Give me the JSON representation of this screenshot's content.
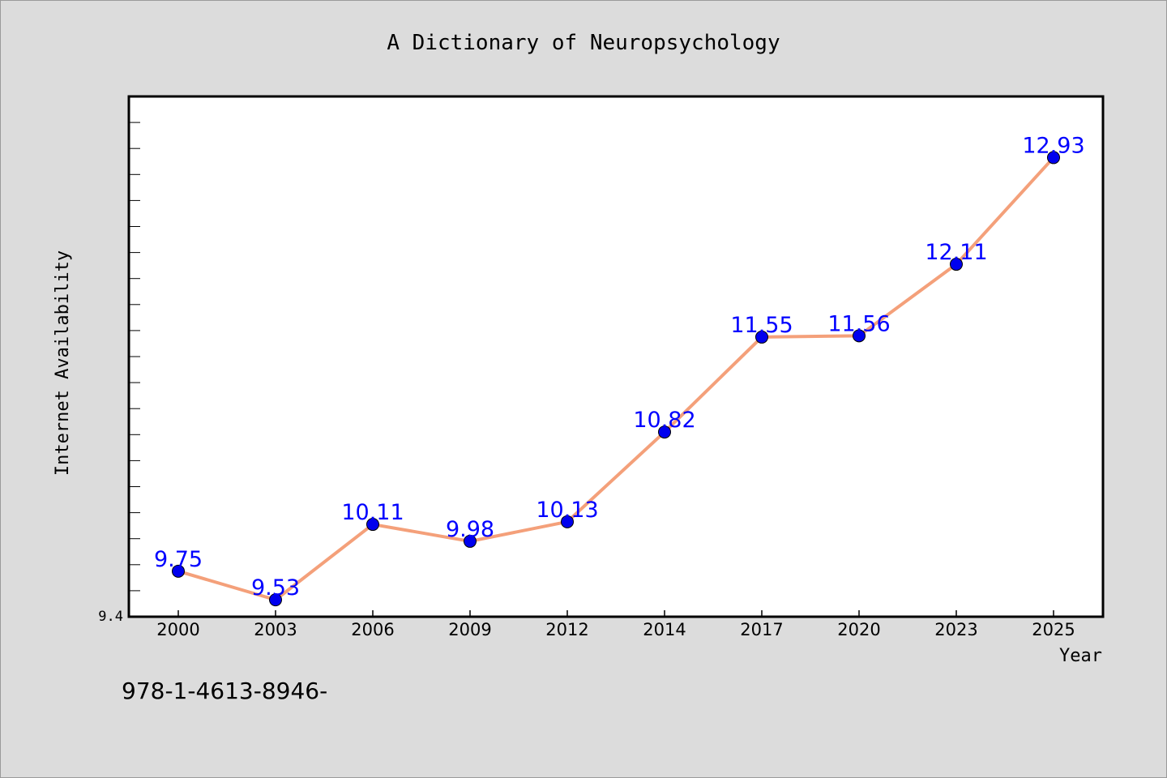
{
  "chart_data": {
    "type": "line",
    "title": "A Dictionary of Neuropsychology",
    "xlabel": "Year",
    "ylabel": "Internet Availability",
    "categories": [
      "2000",
      "2003",
      "2006",
      "2009",
      "2012",
      "2014",
      "2017",
      "2020",
      "2023",
      "2025"
    ],
    "series": [
      {
        "values": [
          9.75,
          9.53,
          10.11,
          9.98,
          10.13,
          10.82,
          11.55,
          11.56,
          12.11,
          12.93
        ]
      }
    ],
    "value_labels": [
      "9.75",
      "9.53",
      "10.11",
      "9.98",
      "10.13",
      "10.82",
      "11.55",
      "11.56",
      "12.11",
      "12.93"
    ],
    "ylim": [
      9.4,
      13.4
    ],
    "y_tick_label": "9.4",
    "grid": false,
    "legend": "none",
    "line_color": "#f4a07a",
    "marker_color": "#0000ee",
    "label_color": "#0000ff"
  },
  "footer": {
    "isbn": "978-1-4613-8946-"
  }
}
